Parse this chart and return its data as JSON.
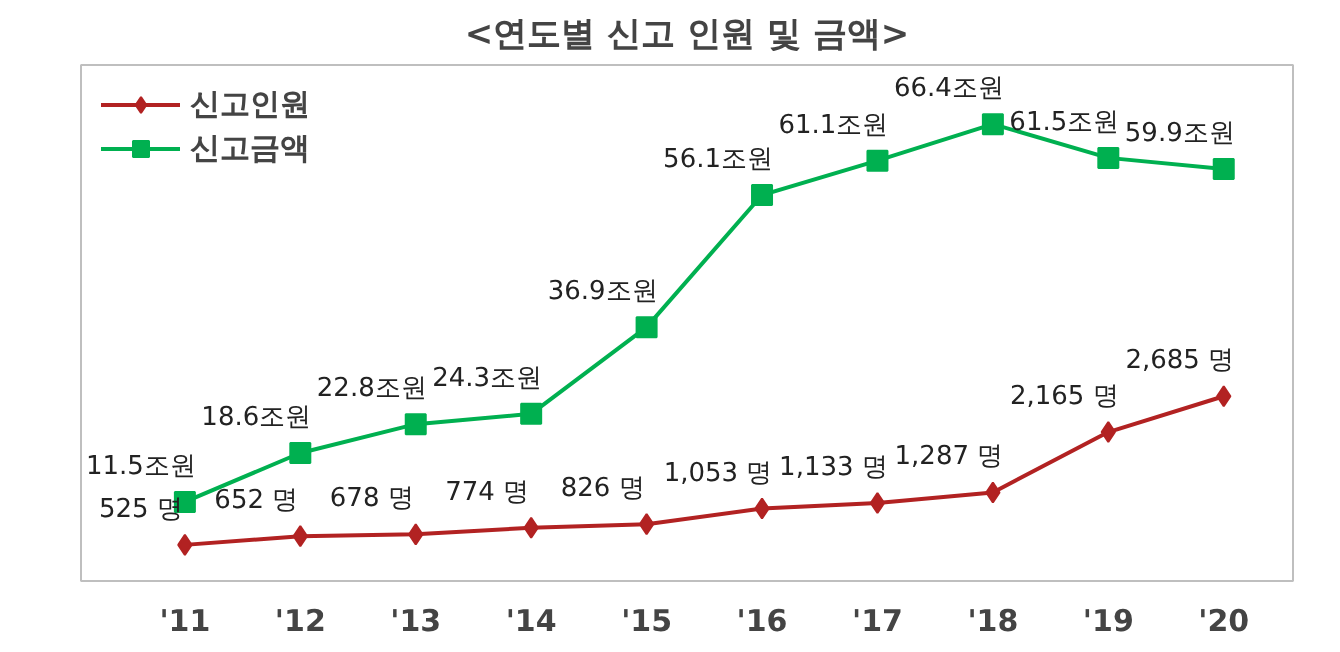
{
  "chart_data": {
    "type": "line",
    "title": "<연도별 신고 인원 및 금액>",
    "categories": [
      "'11",
      "'12",
      "'13",
      "'14",
      "'15",
      "'16",
      "'17",
      "'18",
      "'19",
      "'20"
    ],
    "series": [
      {
        "name": "신고인원",
        "color": "#b22222",
        "marker": "diamond",
        "values": [
          525,
          652,
          678,
          774,
          826,
          1053,
          1133,
          1287,
          2165,
          2685
        ],
        "value_labels": [
          "525 명",
          "652 명",
          "678 명",
          "774 명",
          "826 명",
          "1,053 명",
          "1,133 명",
          "1,287 명",
          "2,165 명",
          "2,685 명"
        ]
      },
      {
        "name": "신고금액",
        "color": "#00b050",
        "marker": "square",
        "axis": "y2",
        "values": [
          11.5,
          18.6,
          22.8,
          24.3,
          36.9,
          56.1,
          61.1,
          66.4,
          61.5,
          59.9
        ],
        "value_labels": [
          "11.5조원",
          "18.6조원",
          "22.8조원",
          "24.3조원",
          "36.9조원",
          "56.1조원",
          "61.1조원",
          "66.4조원",
          "61.5조원",
          "59.9조원"
        ]
      }
    ],
    "ylim": [
      0,
      7500
    ],
    "y2lim": [
      0,
      75
    ],
    "tick_labels": "x",
    "grid": false,
    "legend": "top left"
  }
}
